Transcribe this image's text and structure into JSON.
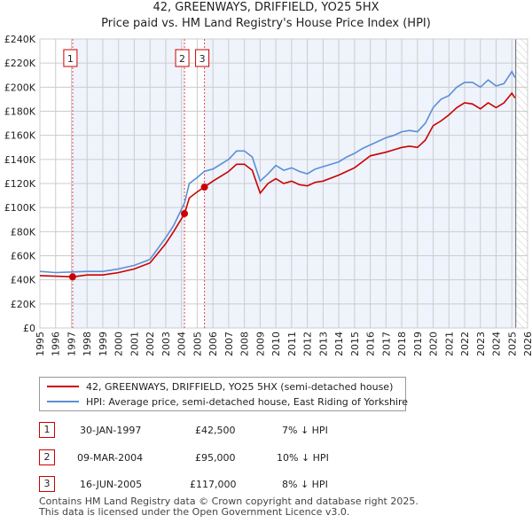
{
  "chart_data": {
    "type": "line",
    "title": "42, GREENWAYS, DRIFFIELD, YO25 5HX",
    "subtitle": "Price paid vs. HM Land Registry's House Price Index (HPI)",
    "xlim": [
      1995,
      2026
    ],
    "ylim": [
      0,
      240000
    ],
    "x_ticks": [
      "1995",
      "1996",
      "1997",
      "1998",
      "1999",
      "2000",
      "2001",
      "2002",
      "2003",
      "2004",
      "2005",
      "2006",
      "2007",
      "2008",
      "2009",
      "2010",
      "2011",
      "2012",
      "2013",
      "2014",
      "2015",
      "2016",
      "2017",
      "2018",
      "2019",
      "2020",
      "2021",
      "2022",
      "2023",
      "2024",
      "2025",
      "2026"
    ],
    "y_ticks": [
      "£0",
      "£20K",
      "£40K",
      "£60K",
      "£80K",
      "£100K",
      "£120K",
      "£140K",
      "£160K",
      "£180K",
      "£200K",
      "£220K",
      "£240K"
    ],
    "grid": true,
    "colors": {
      "property": "#cc0000",
      "hpi": "#5b8fd6",
      "shade": "#eef3fc"
    },
    "x": [
      1995,
      1996,
      1997.08,
      1998,
      1999,
      2000,
      2001,
      2002,
      2003,
      2003.5,
      2004.2,
      2004.5,
      2005,
      2005.45,
      2006,
      2007,
      2007.5,
      2008,
      2008.5,
      2009,
      2009.5,
      2010,
      2010.5,
      2011,
      2011.5,
      2012,
      2012.5,
      2013,
      2014,
      2014.5,
      2015,
      2015.5,
      2016,
      2017,
      2017.5,
      2018,
      2018.5,
      2019,
      2019.5,
      2020,
      2020.5,
      2021,
      2021.5,
      2022,
      2022.5,
      2023,
      2023.5,
      2024,
      2024.5,
      2025,
      2025.2
    ],
    "series": [
      {
        "name": "42, GREENWAYS, DRIFFIELD, YO25 5HX (semi-detached house)",
        "values": [
          43500,
          43000,
          42500,
          44000,
          44000,
          46000,
          49000,
          54000,
          70000,
          80000,
          95000,
          108000,
          113000,
          117000,
          122000,
          130000,
          136000,
          136000,
          131000,
          112000,
          120000,
          124000,
          120000,
          122000,
          119000,
          118000,
          121000,
          122000,
          127000,
          130000,
          133000,
          138000,
          143000,
          146000,
          148000,
          150000,
          151000,
          150000,
          156000,
          168000,
          172000,
          177000,
          183000,
          187000,
          186000,
          182000,
          187000,
          183000,
          187000,
          195000,
          191000
        ]
      },
      {
        "name": "HPI: Average price, semi-detached house, East Riding of Yorkshire",
        "values": [
          47000,
          46000,
          46500,
          47000,
          47000,
          49000,
          52000,
          57000,
          75000,
          85000,
          104000,
          120000,
          125000,
          130000,
          132000,
          140000,
          147000,
          147000,
          142000,
          122000,
          128000,
          135000,
          131000,
          133000,
          130000,
          128000,
          132000,
          134000,
          138000,
          142000,
          145000,
          149000,
          152000,
          158000,
          160000,
          163000,
          164000,
          163000,
          170000,
          183000,
          190000,
          193000,
          200000,
          204000,
          204000,
          200000,
          206000,
          201000,
          203000,
          213000,
          208000
        ]
      }
    ],
    "sales": [
      {
        "label": "1",
        "x": 1997.08,
        "price": 42500,
        "date": "30-JAN-1997",
        "price_text": "£42,500",
        "hpi_text": "7% ↓ HPI"
      },
      {
        "label": "2",
        "x": 2004.19,
        "price": 95000,
        "date": "09-MAR-2004",
        "price_text": "£95,000",
        "hpi_text": "10% ↓ HPI"
      },
      {
        "label": "3",
        "x": 2005.46,
        "price": 117000,
        "date": "16-JUN-2005",
        "price_text": "£117,000",
        "hpi_text": "8% ↓ HPI"
      }
    ],
    "data_end": 2025.25
  },
  "footer": [
    "Contains HM Land Registry data © Crown copyright and database right 2025.",
    "This data is licensed under the Open Government Licence v3.0."
  ]
}
